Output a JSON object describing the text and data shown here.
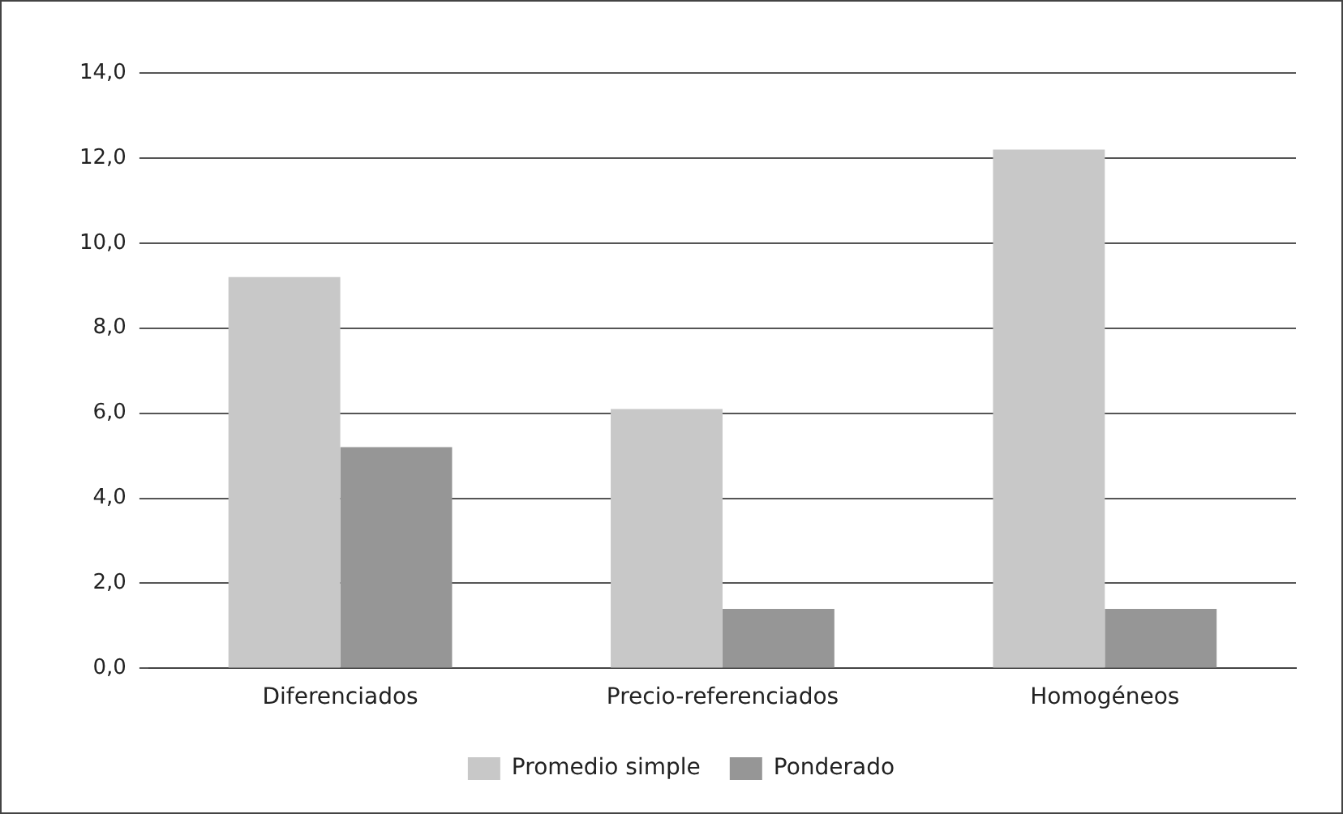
{
  "chart_data": {
    "type": "bar",
    "categories": [
      "Diferenciados",
      "Precio-referenciados",
      "Homogéneos"
    ],
    "series": [
      {
        "name": "Promedio simple",
        "color": "#c8c8c8",
        "values": [
          9.2,
          6.1,
          12.2
        ]
      },
      {
        "name": "Ponderado",
        "color": "#969696",
        "values": [
          5.2,
          1.4,
          1.4
        ]
      }
    ],
    "ylim": [
      0,
      14
    ],
    "yticks": [
      {
        "value": 0,
        "label": "0,0"
      },
      {
        "value": 2,
        "label": "2,0"
      },
      {
        "value": 4,
        "label": "4,0"
      },
      {
        "value": 6,
        "label": "6,0"
      },
      {
        "value": 8,
        "label": "8,0"
      },
      {
        "value": 10,
        "label": "10,0"
      },
      {
        "value": 12,
        "label": "12,0"
      },
      {
        "value": 14,
        "label": "14,0"
      }
    ],
    "grid": "y",
    "legend": "bottom"
  }
}
